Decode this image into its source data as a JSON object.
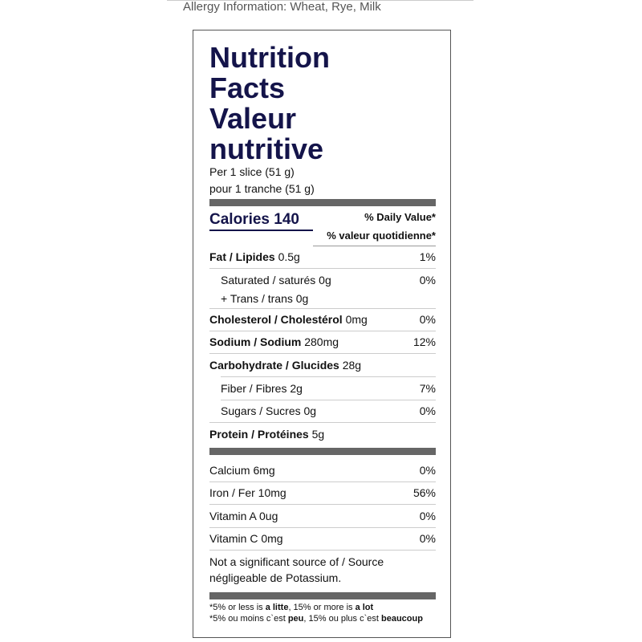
{
  "allergy": "Allergy Information: Wheat, Rye, Milk",
  "title": [
    "Nutrition",
    "Facts",
    "Valeur",
    "nutritive"
  ],
  "serving": [
    "Per 1 slice (51 g)",
    "pour 1 tranche (51 g)"
  ],
  "calories": "Calories 140",
  "dv_header": [
    "% Daily Value*",
    "% valeur quotidienne*"
  ],
  "nutrients": [
    {
      "name": "Fat / Lipides",
      "amount": "0.5g",
      "dv": "1%"
    },
    {
      "lines": [
        "Saturated / saturés 0g",
        "+ Trans / trans 0g"
      ],
      "dv": "0%"
    },
    {
      "name": "Cholesterol / Cholestérol",
      "amount": "0mg",
      "dv": "0%"
    },
    {
      "name": "Sodium / Sodium",
      "amount": "280mg",
      "dv": "12%"
    },
    {
      "name": "Carbohydrate / Glucides",
      "amount": "28g"
    },
    {
      "text": "Fiber / Fibres 2g",
      "dv": "7%"
    },
    {
      "text": "Sugars / Sucres 0g",
      "dv": "0%"
    },
    {
      "name": "Protein / Protéines",
      "amount": "5g"
    }
  ],
  "minerals": [
    {
      "text": "Calcium 6mg",
      "dv": "0%"
    },
    {
      "text": "Iron / Fer 10mg",
      "dv": "56%"
    },
    {
      "text": "Vitamin A 0ug",
      "dv": "0%"
    },
    {
      "text": "Vitamin C 0mg",
      "dv": "0%"
    }
  ],
  "note": [
    "Not a significant source of / Source",
    "négligeable de Potassium."
  ],
  "footnote": [
    [
      "*5% or less is ",
      "a litte",
      ", 15% or more is ",
      "a lot"
    ],
    [
      "*5% ou moins c`est ",
      "peu",
      ", 15% ou plus c`est ",
      "beaucoup"
    ]
  ]
}
